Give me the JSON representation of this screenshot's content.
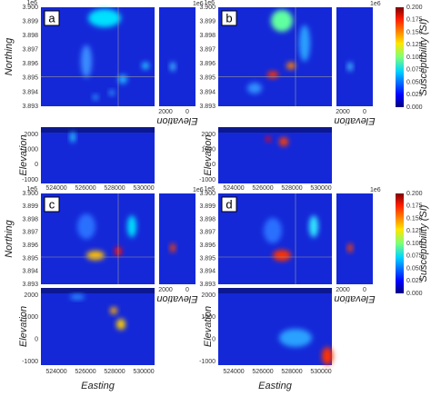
{
  "panels": [
    {
      "label": "a"
    },
    {
      "label": "b"
    },
    {
      "label": "c"
    },
    {
      "label": "d"
    }
  ],
  "axes": {
    "northing_label": "Northing",
    "elevation_label": "Elevation",
    "easting_label": "Easting",
    "offset": "1e6",
    "northing_ticks": [
      "3.900",
      "3.899",
      "3.898",
      "3.897",
      "3.896",
      "3.895",
      "3.894",
      "3.893"
    ],
    "elevation_ticks": [
      "2000",
      "1000",
      "0",
      "-1000"
    ],
    "easting_ticks": [
      "524000",
      "526000",
      "528000",
      "530000"
    ],
    "side_ticks": [
      "2000",
      "0"
    ]
  },
  "colorbar": {
    "label": "Susceptibility (SI)",
    "ticks": [
      "0.200",
      "0.175",
      "0.150",
      "0.125",
      "0.100",
      "0.075",
      "0.050",
      "0.025",
      "0.000"
    ]
  }
}
